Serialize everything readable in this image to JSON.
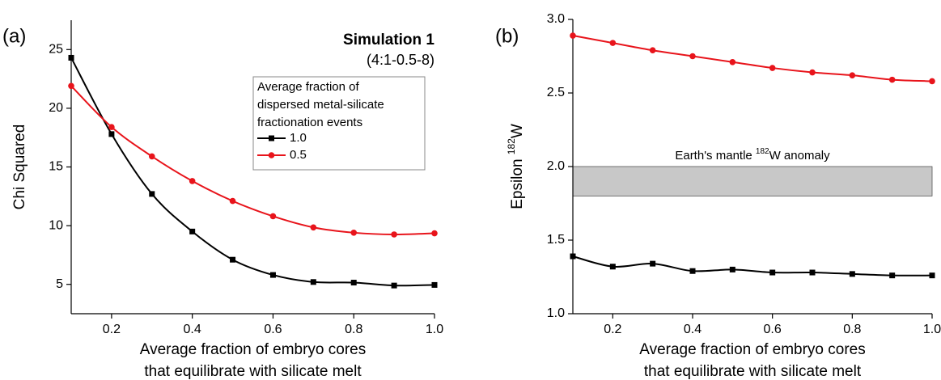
{
  "chart_data": [
    {
      "type": "line",
      "panel_label": "(a)",
      "title": "Simulation 1",
      "subtitle": "(4:1-0.5-8)",
      "x_label": [
        "Average fraction of embryo cores",
        "that equilibrate with silicate melt"
      ],
      "y_label": [
        "Chi Squared"
      ],
      "x": [
        0.1,
        0.2,
        0.3,
        0.4,
        0.5,
        0.6,
        0.7,
        0.8,
        0.9,
        1.0
      ],
      "xlim": [
        0.1,
        1.0
      ],
      "xticks": [
        0.2,
        0.4,
        0.6,
        0.8,
        {
          "value": 1.0,
          "label": "1.0"
        }
      ],
      "ylim": [
        2.5,
        27.5
      ],
      "yticks": [
        5,
        10,
        15,
        20,
        25
      ],
      "legend_title": [
        "Average fraction of",
        "dispersed metal-silicate",
        "fractionation events"
      ],
      "series": [
        {
          "name": "1.0",
          "color": "#000000",
          "marker": "square",
          "values": [
            24.3,
            17.8,
            12.7,
            9.5,
            7.1,
            5.8,
            5.2,
            5.15,
            4.9,
            4.95
          ]
        },
        {
          "name": "0.5",
          "color": "#e8141b",
          "marker": "circle",
          "values": [
            21.9,
            18.4,
            15.9,
            13.8,
            12.1,
            10.8,
            9.85,
            9.4,
            9.25,
            9.35
          ]
        }
      ]
    },
    {
      "type": "line",
      "panel_label": "(b)",
      "x_label": [
        "Average fraction of embryo cores",
        "that equilibrate with silicate melt"
      ],
      "y_label": [
        "Epsilon ",
        "182",
        "W"
      ],
      "x": [
        0.1,
        0.2,
        0.3,
        0.4,
        0.5,
        0.6,
        0.7,
        0.8,
        0.9,
        1.0
      ],
      "xlim": [
        0.1,
        1.0
      ],
      "xticks": [
        0.2,
        0.4,
        0.6,
        0.8,
        {
          "value": 1.0,
          "label": "1.0"
        }
      ],
      "ylim": [
        1.0,
        3.0
      ],
      "yticks": [
        {
          "value": 1.0,
          "label": "1.0"
        },
        1.5,
        {
          "value": 2.0,
          "label": "2.0"
        },
        2.5,
        {
          "value": 3.0,
          "label": "3.0"
        }
      ],
      "band": {
        "text": [
          "Earth's mantle ",
          "182",
          "W anomaly"
        ],
        "ymin": 1.8,
        "ymax": 2.0,
        "color": "#c8c8c8"
      },
      "series": [
        {
          "color": "#e8141b",
          "marker": "circle",
          "values": [
            2.89,
            2.84,
            2.79,
            2.75,
            2.71,
            2.67,
            2.64,
            2.62,
            2.59,
            2.58
          ]
        },
        {
          "color": "#000000",
          "marker": "square",
          "values": [
            1.39,
            1.32,
            1.34,
            1.29,
            1.3,
            1.28,
            1.28,
            1.27,
            1.26,
            1.26
          ]
        }
      ]
    }
  ]
}
